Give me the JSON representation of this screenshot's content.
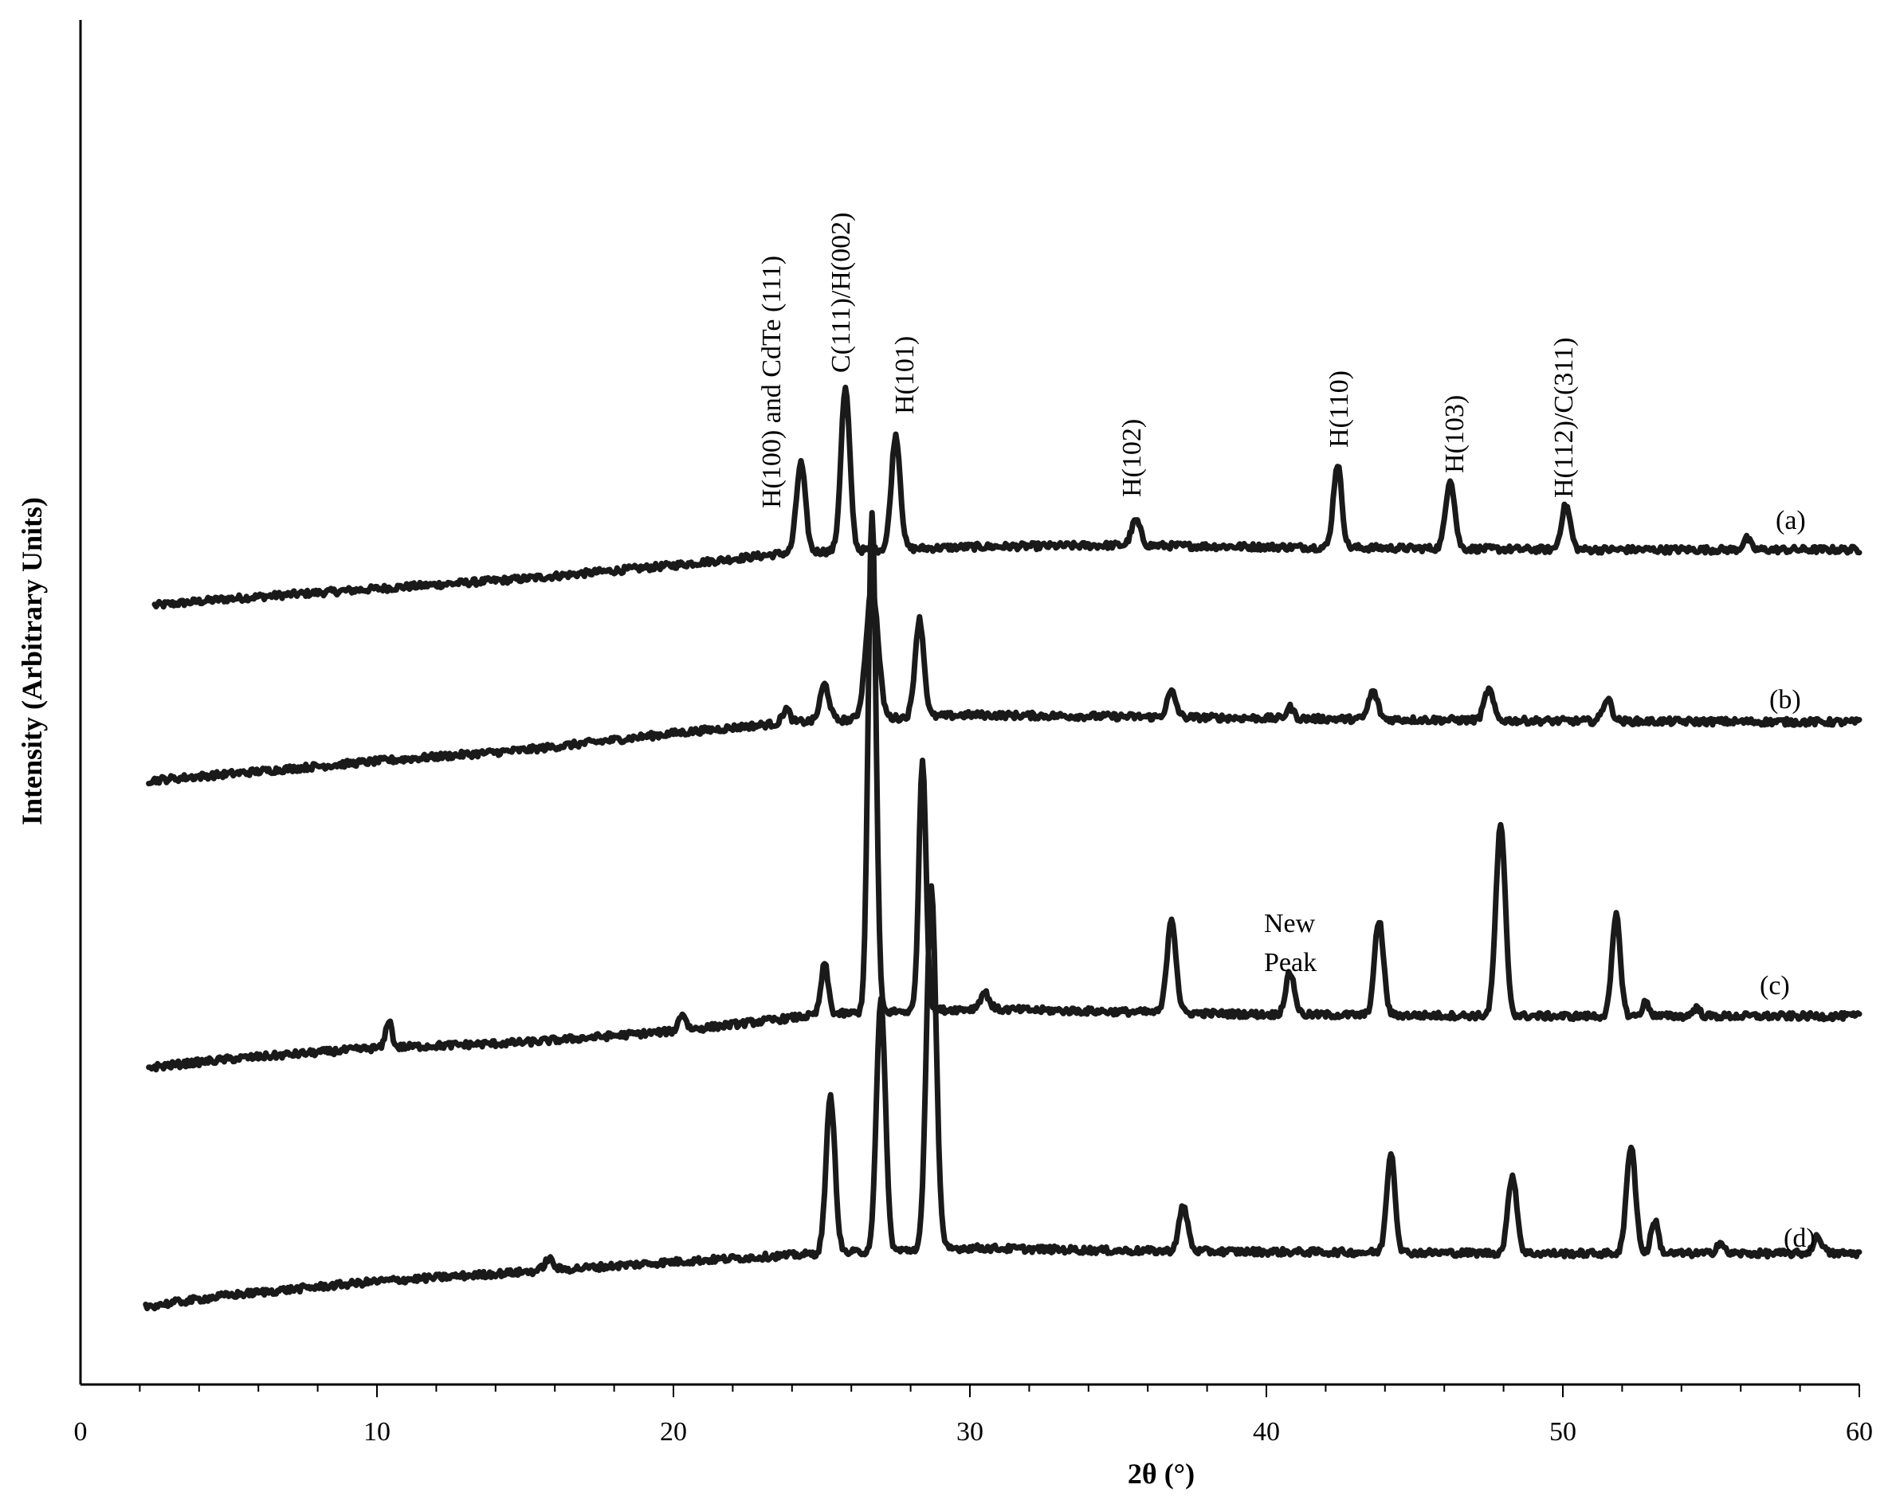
{
  "chart_data": {
    "type": "line",
    "xlabel": "2θ (°)",
    "ylabel": "Intensity (Arbitrary Units)",
    "xlim": [
      0,
      60
    ],
    "xticks": [
      0,
      10,
      20,
      30,
      40,
      50,
      60
    ],
    "xtick_labels": [
      "0",
      "10",
      "20",
      "30",
      "40",
      "50",
      "60"
    ],
    "grid": false,
    "series": [
      {
        "name": "(a)",
        "baseline": [
          [
            2.5,
            1.0
          ],
          [
            5,
            1.12
          ],
          [
            10,
            1.3
          ],
          [
            15,
            1.48
          ],
          [
            20,
            1.72
          ],
          [
            24,
            1.95
          ],
          [
            30,
            2.05
          ],
          [
            35,
            2.08
          ],
          [
            40,
            2.05
          ],
          [
            50,
            2.0
          ],
          [
            60,
            2.0
          ]
        ],
        "peaks": [
          [
            24.3,
            1.6,
            0.15
          ],
          [
            25.8,
            2.9,
            0.15
          ],
          [
            27.5,
            2.05,
            0.15
          ],
          [
            35.6,
            0.45,
            0.15
          ],
          [
            42.4,
            1.5,
            0.14
          ],
          [
            46.2,
            1.25,
            0.15
          ],
          [
            50.1,
            0.8,
            0.15
          ],
          [
            56.2,
            0.2,
            0.12
          ]
        ]
      },
      {
        "name": "(b)",
        "baseline": [
          [
            2.3,
            1.0
          ],
          [
            5,
            1.12
          ],
          [
            10,
            1.35
          ],
          [
            15,
            1.55
          ],
          [
            20,
            1.85
          ],
          [
            24,
            2.05
          ],
          [
            30,
            2.18
          ],
          [
            35,
            2.15
          ],
          [
            40,
            2.12
          ],
          [
            50,
            2.07
          ],
          [
            60,
            2.05
          ]
        ],
        "peaks": [
          [
            23.8,
            0.25,
            0.12
          ],
          [
            25.1,
            0.65,
            0.15
          ],
          [
            26.7,
            2.35,
            0.2
          ],
          [
            28.3,
            1.75,
            0.15
          ],
          [
            36.8,
            0.45,
            0.15
          ],
          [
            40.8,
            0.2,
            0.12
          ],
          [
            43.6,
            0.5,
            0.15
          ],
          [
            47.5,
            0.55,
            0.15
          ],
          [
            51.5,
            0.4,
            0.15
          ]
        ]
      },
      {
        "name": "(c)",
        "baseline": [
          [
            2.3,
            1.0
          ],
          [
            5,
            1.15
          ],
          [
            10,
            1.35
          ],
          [
            15,
            1.45
          ],
          [
            20,
            1.65
          ],
          [
            25,
            1.95
          ],
          [
            30,
            2.05
          ],
          [
            35,
            2.0
          ],
          [
            40,
            1.95
          ],
          [
            50,
            1.92
          ],
          [
            60,
            1.92
          ]
        ],
        "peaks": [
          [
            10.4,
            0.5,
            0.1
          ],
          [
            20.3,
            0.3,
            0.12
          ],
          [
            25.1,
            0.9,
            0.12
          ],
          [
            26.7,
            9.0,
            0.13
          ],
          [
            28.4,
            4.5,
            0.12
          ],
          [
            30.5,
            0.3,
            0.15
          ],
          [
            36.8,
            1.7,
            0.15
          ],
          [
            40.8,
            0.75,
            0.15
          ],
          [
            43.8,
            1.7,
            0.15
          ],
          [
            47.9,
            3.4,
            0.16
          ],
          [
            51.8,
            1.8,
            0.14
          ],
          [
            52.8,
            0.25,
            0.12
          ],
          [
            54.5,
            0.15,
            0.12
          ]
        ]
      },
      {
        "name": "(d)",
        "baseline": [
          [
            2.2,
            1.0
          ],
          [
            5,
            1.2
          ],
          [
            10,
            1.45
          ],
          [
            15,
            1.62
          ],
          [
            20,
            1.8
          ],
          [
            25,
            1.95
          ],
          [
            30,
            2.05
          ],
          [
            35,
            2.0
          ],
          [
            40,
            1.98
          ],
          [
            50,
            1.95
          ],
          [
            60,
            1.95
          ]
        ],
        "peaks": [
          [
            15.8,
            0.2,
            0.15
          ],
          [
            25.3,
            2.8,
            0.15
          ],
          [
            27.0,
            4.5,
            0.15
          ],
          [
            28.7,
            6.5,
            0.16
          ],
          [
            37.2,
            0.8,
            0.15
          ],
          [
            44.2,
            1.8,
            0.14
          ],
          [
            48.3,
            1.4,
            0.15
          ],
          [
            52.3,
            1.95,
            0.15
          ],
          [
            53.1,
            0.6,
            0.12
          ],
          [
            55.3,
            0.2,
            0.12
          ],
          [
            58.6,
            0.3,
            0.15
          ]
        ]
      }
    ],
    "annotations": [
      {
        "text": "H(100) and CdTe (111)",
        "x": 23.2
      },
      {
        "text": "C(111)/H(002)",
        "x": 25.8
      },
      {
        "text": "H(101)",
        "x": 27.5
      },
      {
        "text": "H(102)",
        "x": 35.6
      },
      {
        "text": "H(110)",
        "x": 42.4
      },
      {
        "text": "H(103)",
        "x": 46.2
      },
      {
        "text": "H(112)/C(311)",
        "x": 50.1
      },
      {
        "text": "New",
        "x": 40.9
      },
      {
        "text": "Peak",
        "x": 40.9
      }
    ]
  }
}
